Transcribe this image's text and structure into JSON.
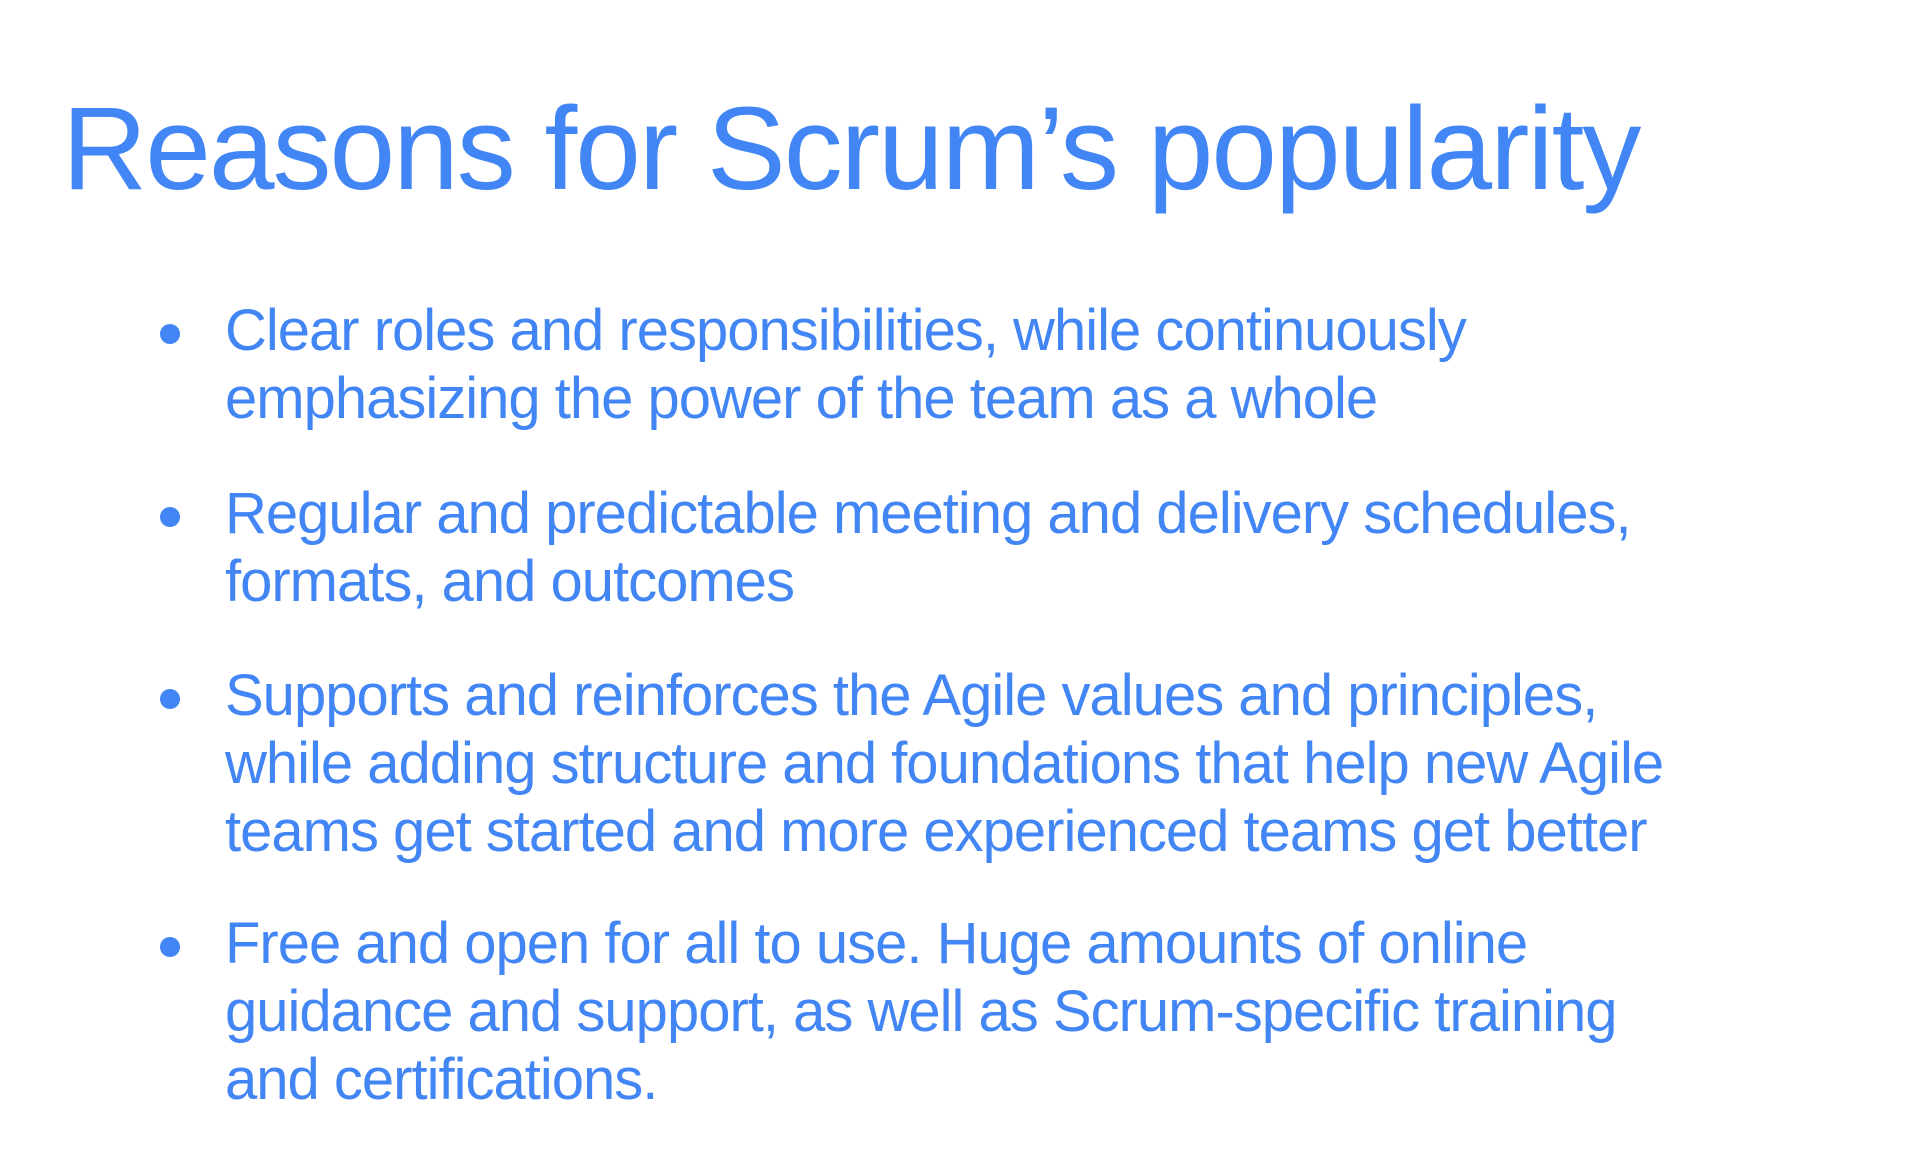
{
  "slide": {
    "title": "Reasons for Scrum’s popularity",
    "accent_color": "#4285f4",
    "bullets": [
      {
        "text": "Clear roles and responsibilities, while continuously\nemphasizing the power of the team as a whole"
      },
      {
        "text": "Regular and predictable meeting and delivery schedules,\nformats, and outcomes"
      },
      {
        "text": "Supports and reinforces the Agile values and principles,\nwhile adding structure and foundations that help new Agile\nteams get started and more experienced teams get better"
      },
      {
        "text": "Free and open for all to use. Huge amounts of online\nguidance and support, as well as Scrum-specific training\nand certifications."
      }
    ]
  }
}
